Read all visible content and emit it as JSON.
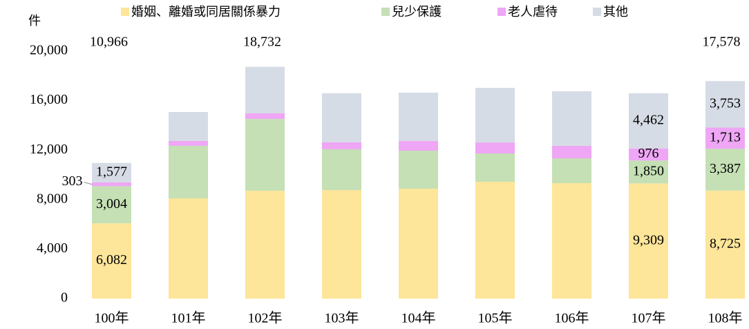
{
  "chart_data": {
    "type": "stacked_bar",
    "y_label": "件",
    "categories": [
      "100年",
      "101年",
      "102年",
      "103年",
      "104年",
      "105年",
      "106年",
      "107年",
      "108年"
    ],
    "series": [
      {
        "name": "婚姻、離婚或同居關係暴力",
        "color": "#fde59a",
        "values": [
          6082,
          8100,
          8720,
          8770,
          8880,
          9440,
          9330,
          9309,
          8725
        ],
        "value_labels": [
          "6,082",
          null,
          null,
          null,
          null,
          null,
          null,
          "9,309",
          "8,725"
        ]
      },
      {
        "name": "兒少保護",
        "color": "#c5e0b4",
        "values": [
          3004,
          4250,
          5800,
          3300,
          3075,
          2290,
          2010,
          1850,
          3387
        ],
        "value_labels": [
          "3,004",
          null,
          null,
          null,
          null,
          null,
          null,
          "1,850",
          "3,387"
        ]
      },
      {
        "name": "老人虐待",
        "color": "#eea6f5",
        "values": [
          303,
          390,
          450,
          560,
          780,
          890,
          1005,
          976,
          1713
        ],
        "value_labels": [
          "303",
          null,
          null,
          null,
          null,
          null,
          null,
          "976",
          "1,713"
        ]
      },
      {
        "name": "其他",
        "color": "#d6dce5",
        "values": [
          1577,
          2340,
          3762,
          3970,
          3910,
          4410,
          4410,
          4462,
          3753
        ],
        "value_labels": [
          "1,577",
          null,
          null,
          null,
          null,
          null,
          null,
          "4,462",
          "3,753"
        ]
      }
    ],
    "totals": [
      10966,
      null,
      18732,
      null,
      null,
      null,
      null,
      null,
      17578
    ],
    "total_labels": [
      "10,966",
      null,
      "18,732",
      null,
      null,
      null,
      null,
      null,
      "17,578"
    ],
    "ylim": [
      0,
      20000
    ],
    "yticks": [
      0,
      {
        "value": 4000,
        "label": "4,000"
      },
      {
        "value": 8000,
        "label": "8,000"
      },
      {
        "value": 12000,
        "label": "12,000"
      },
      {
        "value": 16000,
        "label": "16,000"
      },
      {
        "value": 20000,
        "label": "20,000"
      }
    ],
    "grid": false
  }
}
